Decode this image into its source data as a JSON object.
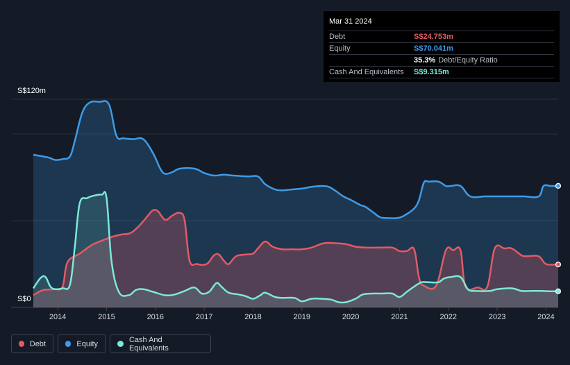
{
  "tooltip": {
    "date": "Mar 31 2024",
    "rows": [
      {
        "label": "Debt",
        "value": "S$24.753m",
        "suffix": "",
        "color": "#e35a65"
      },
      {
        "label": "Equity",
        "value": "S$70.041m",
        "suffix": "",
        "color": "#3d9be9"
      },
      {
        "label": "",
        "value": "35.3%",
        "suffix": "Debt/Equity Ratio",
        "color": "#ffffff"
      },
      {
        "label": "Cash And Equivalents",
        "value": "S$9.315m",
        "suffix": "",
        "color": "#7de8d8"
      }
    ]
  },
  "legend": [
    {
      "name": "Debt",
      "color": "#e35a65"
    },
    {
      "name": "Equity",
      "color": "#3d9be9"
    },
    {
      "name": "Cash And Equivalents",
      "color": "#7de8d8"
    }
  ],
  "chart_data": {
    "type": "area",
    "y_top_label": "S$120m",
    "y_bottom_label": "S$0",
    "ylim": [
      0,
      120
    ],
    "xlim": [
      2013.5,
      2024.25
    ],
    "x_ticks": [
      "2014",
      "2015",
      "2016",
      "2017",
      "2018",
      "2019",
      "2020",
      "2021",
      "2022",
      "2023",
      "2024"
    ],
    "grid": true,
    "legend_position": "bottom-left",
    "series": [
      {
        "name": "Equity",
        "color": "#3d9be9",
        "points": [
          [
            2013.5,
            88
          ],
          [
            2013.8,
            86.5
          ],
          [
            2013.95,
            85
          ],
          [
            2014.1,
            85.5
          ],
          [
            2014.25,
            87
          ],
          [
            2014.35,
            96
          ],
          [
            2014.5,
            112
          ],
          [
            2014.65,
            118
          ],
          [
            2014.85,
            118.5
          ],
          [
            2015.05,
            117
          ],
          [
            2015.2,
            99
          ],
          [
            2015.35,
            97.5
          ],
          [
            2015.55,
            97
          ],
          [
            2015.75,
            97
          ],
          [
            2015.95,
            89
          ],
          [
            2016.1,
            80
          ],
          [
            2016.2,
            77
          ],
          [
            2016.35,
            78
          ],
          [
            2016.5,
            80
          ],
          [
            2016.8,
            80
          ],
          [
            2017.0,
            77.5
          ],
          [
            2017.2,
            76
          ],
          [
            2017.4,
            76.5
          ],
          [
            2017.6,
            76
          ],
          [
            2017.9,
            75.5
          ],
          [
            2018.1,
            75.5
          ],
          [
            2018.25,
            71
          ],
          [
            2018.45,
            68
          ],
          [
            2018.6,
            67.5
          ],
          [
            2018.8,
            68
          ],
          [
            2019.0,
            68.5
          ],
          [
            2019.2,
            69.5
          ],
          [
            2019.4,
            70
          ],
          [
            2019.55,
            69.5
          ],
          [
            2019.7,
            67
          ],
          [
            2019.85,
            64
          ],
          [
            2020.0,
            62
          ],
          [
            2020.2,
            59
          ],
          [
            2020.3,
            58
          ],
          [
            2020.45,
            55
          ],
          [
            2020.6,
            52
          ],
          [
            2020.75,
            51.5
          ],
          [
            2020.95,
            51.5
          ],
          [
            2021.1,
            53
          ],
          [
            2021.3,
            57
          ],
          [
            2021.4,
            62
          ],
          [
            2021.5,
            72
          ],
          [
            2021.6,
            72.5
          ],
          [
            2021.8,
            72.5
          ],
          [
            2021.95,
            70
          ],
          [
            2022.05,
            70
          ],
          [
            2022.25,
            70
          ],
          [
            2022.45,
            64
          ],
          [
            2022.75,
            64
          ],
          [
            2023.0,
            64
          ],
          [
            2023.3,
            64
          ],
          [
            2023.55,
            64
          ],
          [
            2023.85,
            64
          ],
          [
            2023.95,
            70
          ],
          [
            2024.1,
            70
          ],
          [
            2024.25,
            70.041
          ]
        ]
      },
      {
        "name": "Debt",
        "color": "#e35a65",
        "points": [
          [
            2013.5,
            7
          ],
          [
            2013.7,
            10
          ],
          [
            2013.95,
            10.5
          ],
          [
            2014.1,
            12
          ],
          [
            2014.2,
            26
          ],
          [
            2014.45,
            31
          ],
          [
            2014.7,
            36
          ],
          [
            2014.95,
            39
          ],
          [
            2015.15,
            41
          ],
          [
            2015.3,
            42
          ],
          [
            2015.5,
            43
          ],
          [
            2015.7,
            48
          ],
          [
            2015.85,
            53
          ],
          [
            2015.95,
            56
          ],
          [
            2016.05,
            55.5
          ],
          [
            2016.2,
            50.5
          ],
          [
            2016.35,
            53
          ],
          [
            2016.5,
            54.5
          ],
          [
            2016.6,
            50
          ],
          [
            2016.7,
            27
          ],
          [
            2016.85,
            25
          ],
          [
            2017.05,
            25
          ],
          [
            2017.2,
            30
          ],
          [
            2017.3,
            30.5
          ],
          [
            2017.4,
            27
          ],
          [
            2017.5,
            25
          ],
          [
            2017.65,
            29.5
          ],
          [
            2017.85,
            30.5
          ],
          [
            2018.0,
            31
          ],
          [
            2018.1,
            34
          ],
          [
            2018.25,
            38
          ],
          [
            2018.4,
            35
          ],
          [
            2018.6,
            33.5
          ],
          [
            2018.8,
            33.5
          ],
          [
            2019.0,
            33.5
          ],
          [
            2019.2,
            34.5
          ],
          [
            2019.45,
            37
          ],
          [
            2019.7,
            37
          ],
          [
            2019.9,
            36.5
          ],
          [
            2020.1,
            35
          ],
          [
            2020.3,
            34.5
          ],
          [
            2020.6,
            34.5
          ],
          [
            2020.85,
            34.5
          ],
          [
            2021.0,
            32.5
          ],
          [
            2021.15,
            32.5
          ],
          [
            2021.3,
            33.5
          ],
          [
            2021.4,
            17
          ],
          [
            2021.5,
            12.5
          ],
          [
            2021.75,
            12.5
          ],
          [
            2021.95,
            33
          ],
          [
            2022.1,
            33
          ],
          [
            2022.25,
            33
          ],
          [
            2022.35,
            12
          ],
          [
            2022.6,
            11.5
          ],
          [
            2022.8,
            12
          ],
          [
            2022.95,
            34
          ],
          [
            2023.15,
            34
          ],
          [
            2023.3,
            34
          ],
          [
            2023.5,
            30
          ],
          [
            2023.6,
            29.5
          ],
          [
            2023.85,
            29.5
          ],
          [
            2024.0,
            25
          ],
          [
            2024.25,
            24.753
          ]
        ]
      },
      {
        "name": "Cash And Equivalents",
        "color": "#7de8d8",
        "points": [
          [
            2013.5,
            11
          ],
          [
            2013.65,
            17
          ],
          [
            2013.75,
            17.5
          ],
          [
            2013.85,
            12
          ],
          [
            2013.95,
            10.5
          ],
          [
            2014.1,
            11
          ],
          [
            2014.25,
            13
          ],
          [
            2014.35,
            35
          ],
          [
            2014.45,
            60
          ],
          [
            2014.6,
            63
          ],
          [
            2014.75,
            64.5
          ],
          [
            2014.9,
            65
          ],
          [
            2015.0,
            63
          ],
          [
            2015.1,
            27
          ],
          [
            2015.25,
            9
          ],
          [
            2015.45,
            7
          ],
          [
            2015.6,
            10
          ],
          [
            2015.75,
            10.5
          ],
          [
            2015.95,
            9
          ],
          [
            2016.2,
            7
          ],
          [
            2016.4,
            7.5
          ],
          [
            2016.6,
            9.5
          ],
          [
            2016.8,
            11.5
          ],
          [
            2016.95,
            8
          ],
          [
            2017.1,
            9
          ],
          [
            2017.25,
            14
          ],
          [
            2017.35,
            12
          ],
          [
            2017.5,
            8.5
          ],
          [
            2017.7,
            7.5
          ],
          [
            2017.85,
            6.5
          ],
          [
            2018.0,
            5
          ],
          [
            2018.15,
            7
          ],
          [
            2018.25,
            8.5
          ],
          [
            2018.45,
            6
          ],
          [
            2018.6,
            5.5
          ],
          [
            2018.85,
            5.5
          ],
          [
            2019.0,
            3.5
          ],
          [
            2019.2,
            5
          ],
          [
            2019.4,
            5
          ],
          [
            2019.6,
            4.5
          ],
          [
            2019.75,
            3
          ],
          [
            2019.9,
            3
          ],
          [
            2020.1,
            5
          ],
          [
            2020.25,
            7.5
          ],
          [
            2020.45,
            8
          ],
          [
            2020.65,
            8
          ],
          [
            2020.85,
            8
          ],
          [
            2021.0,
            6
          ],
          [
            2021.15,
            9
          ],
          [
            2021.3,
            12
          ],
          [
            2021.45,
            14.5
          ],
          [
            2021.6,
            14.5
          ],
          [
            2021.8,
            14.5
          ],
          [
            2021.9,
            16.5
          ],
          [
            2022.05,
            17.5
          ],
          [
            2022.25,
            17.5
          ],
          [
            2022.4,
            10.5
          ],
          [
            2022.55,
            9.5
          ],
          [
            2022.85,
            9.5
          ],
          [
            2023.0,
            10.5
          ],
          [
            2023.3,
            11
          ],
          [
            2023.5,
            9.5
          ],
          [
            2023.7,
            9.5
          ],
          [
            2023.9,
            9.5
          ],
          [
            2024.1,
            9.3
          ],
          [
            2024.25,
            9.315
          ]
        ]
      }
    ]
  }
}
